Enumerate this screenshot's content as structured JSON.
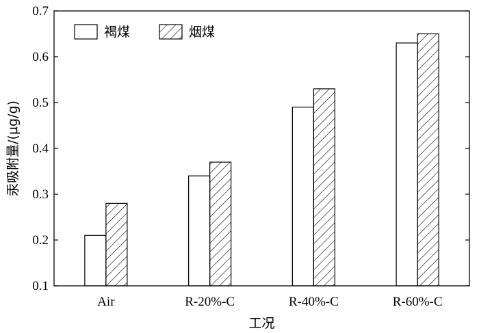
{
  "chart_data": {
    "type": "bar",
    "categories": [
      "Air",
      "R-20%-C",
      "R-40%-C",
      "R-60%-C"
    ],
    "series": [
      {
        "name": "褐煤",
        "values": [
          0.21,
          0.34,
          0.49,
          0.63
        ],
        "fill": "none"
      },
      {
        "name": "烟煤",
        "values": [
          0.28,
          0.37,
          0.53,
          0.65
        ],
        "fill": "hatch"
      }
    ],
    "xlabel": "工况",
    "ylabel": "汞吸附量/(μg/g)",
    "ylim": [
      0.1,
      0.7
    ],
    "yticks": [
      "0.1",
      "0.2",
      "0.3",
      "0.4",
      "0.5",
      "0.6",
      "0.7"
    ],
    "grid": false,
    "legend_position": "top-left"
  }
}
